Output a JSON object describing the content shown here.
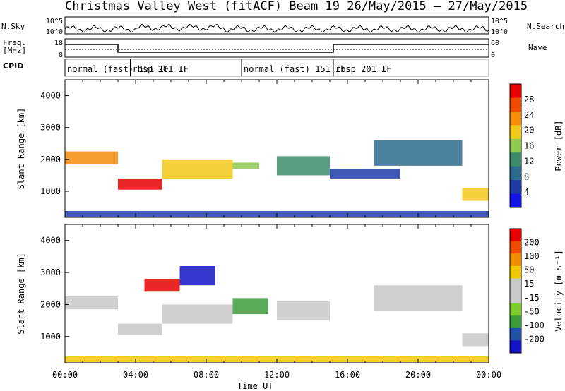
{
  "header": {
    "title": "Christmas Valley West (fitACF)",
    "beam": "Beam 19",
    "date_range": "26/May/2015 – 27/May/2015"
  },
  "sky_panel": {
    "left_label": "N.Sky",
    "right_label": "N.Search",
    "left_ticks": [
      "10^5",
      "10^0"
    ],
    "right_ticks": [
      "10^5",
      "10^0"
    ]
  },
  "freq_panel": {
    "left_label_1": "Freq.",
    "left_label_2": "[MHz]",
    "right_label": "Nave",
    "left_ticks": [
      "18",
      "8"
    ],
    "right_ticks": [
      "60",
      "0"
    ]
  },
  "cpid_panel": {
    "label": "CPID",
    "segments": [
      {
        "start_hour": 0,
        "text": "normal (fast) 151 IF"
      },
      {
        "start_hour": 3.7,
        "text": "rbsp 201 IF"
      },
      {
        "start_hour": 10,
        "text": "normal (fast) 151 IF"
      },
      {
        "start_hour": 15.2,
        "text": "rbsp 201 IF"
      }
    ]
  },
  "colors": {
    "power_scale": [
      "#1414e6",
      "#1e3ca8",
      "#2d6b8f",
      "#3d8c6b",
      "#8fc84e",
      "#f2c81a",
      "#f58c0a",
      "#ee4a00",
      "#e60000"
    ],
    "velocity_scale": [
      "#1414c8",
      "#2050a0",
      "#3c9c3c",
      "#7ccc2c",
      "#c8c8c8",
      "#c8c8c8",
      "#f0c800",
      "#f08c00",
      "#f04a00",
      "#e60000"
    ]
  },
  "chart_data": [
    {
      "type": "heatmap",
      "name": "power",
      "ylabel": "Slant Range [km]",
      "colorbar_label": "Power [dB]",
      "colorbar_ticks": [
        "28",
        "24",
        "20",
        "16",
        "12",
        "8",
        "4"
      ],
      "y_ticks": [
        "4000",
        "3000",
        "2000",
        "1000"
      ],
      "ylim": [
        180,
        4500
      ],
      "xlim": [
        0,
        24
      ],
      "regions": [
        {
          "t0": 0,
          "t1": 3,
          "r0": 1850,
          "r1": 2250,
          "level": 6
        },
        {
          "t0": 3,
          "t1": 5.5,
          "r0": 1050,
          "r1": 1400,
          "level": 8
        },
        {
          "t0": 5.5,
          "t1": 9.5,
          "r0": 1400,
          "r1": 2000,
          "level": 5
        },
        {
          "t0": 9.5,
          "t1": 11,
          "r0": 1700,
          "r1": 1900,
          "level": 4
        },
        {
          "t0": 12,
          "t1": 15,
          "r0": 1500,
          "r1": 2100,
          "level": 3
        },
        {
          "t0": 15,
          "t1": 19,
          "r0": 1400,
          "r1": 1700,
          "level": 1
        },
        {
          "t0": 17.5,
          "t1": 22.5,
          "r0": 1800,
          "r1": 2600,
          "level": 2
        },
        {
          "t0": 22.5,
          "t1": 24,
          "r0": 700,
          "r1": 1100,
          "level": 5
        },
        {
          "t0": 0,
          "t1": 24,
          "r0": 200,
          "r1": 380,
          "level": 1
        }
      ]
    },
    {
      "type": "heatmap",
      "name": "velocity",
      "ylabel": "Slant Range [km]",
      "colorbar_label": "Velocity [m s⁻¹]",
      "colorbar_ticks": [
        "200",
        "100",
        "50",
        "15",
        "-15",
        "-50",
        "-100",
        "-200"
      ],
      "y_ticks": [
        "4000",
        "3000",
        "2000",
        "1000"
      ],
      "ylim": [
        180,
        4500
      ],
      "xlim": [
        0,
        24
      ],
      "regions": [
        {
          "t0": 0,
          "t1": 3,
          "r0": 1850,
          "r1": 2250,
          "level": 4
        },
        {
          "t0": 3,
          "t1": 5.5,
          "r0": 1050,
          "r1": 1400,
          "level": 4
        },
        {
          "t0": 4.5,
          "t1": 6.5,
          "r0": 2400,
          "r1": 2800,
          "level": 9
        },
        {
          "t0": 6.5,
          "t1": 8.5,
          "r0": 2600,
          "r1": 3200,
          "level": 0
        },
        {
          "t0": 5.5,
          "t1": 9.5,
          "r0": 1400,
          "r1": 2000,
          "level": 4
        },
        {
          "t0": 9.5,
          "t1": 11.5,
          "r0": 1700,
          "r1": 2200,
          "level": 2
        },
        {
          "t0": 12,
          "t1": 15,
          "r0": 1500,
          "r1": 2100,
          "level": 4
        },
        {
          "t0": 17.5,
          "t1": 22.5,
          "r0": 1800,
          "r1": 2600,
          "level": 4
        },
        {
          "t0": 22.5,
          "t1": 24,
          "r0": 700,
          "r1": 1100,
          "level": 4
        },
        {
          "t0": 0,
          "t1": 24,
          "r0": 200,
          "r1": 380,
          "level": 6
        }
      ]
    }
  ],
  "x_axis": {
    "label": "Time UT",
    "ticks": [
      "00:00",
      "04:00",
      "08:00",
      "12:00",
      "16:00",
      "20:00",
      "00:00"
    ]
  }
}
